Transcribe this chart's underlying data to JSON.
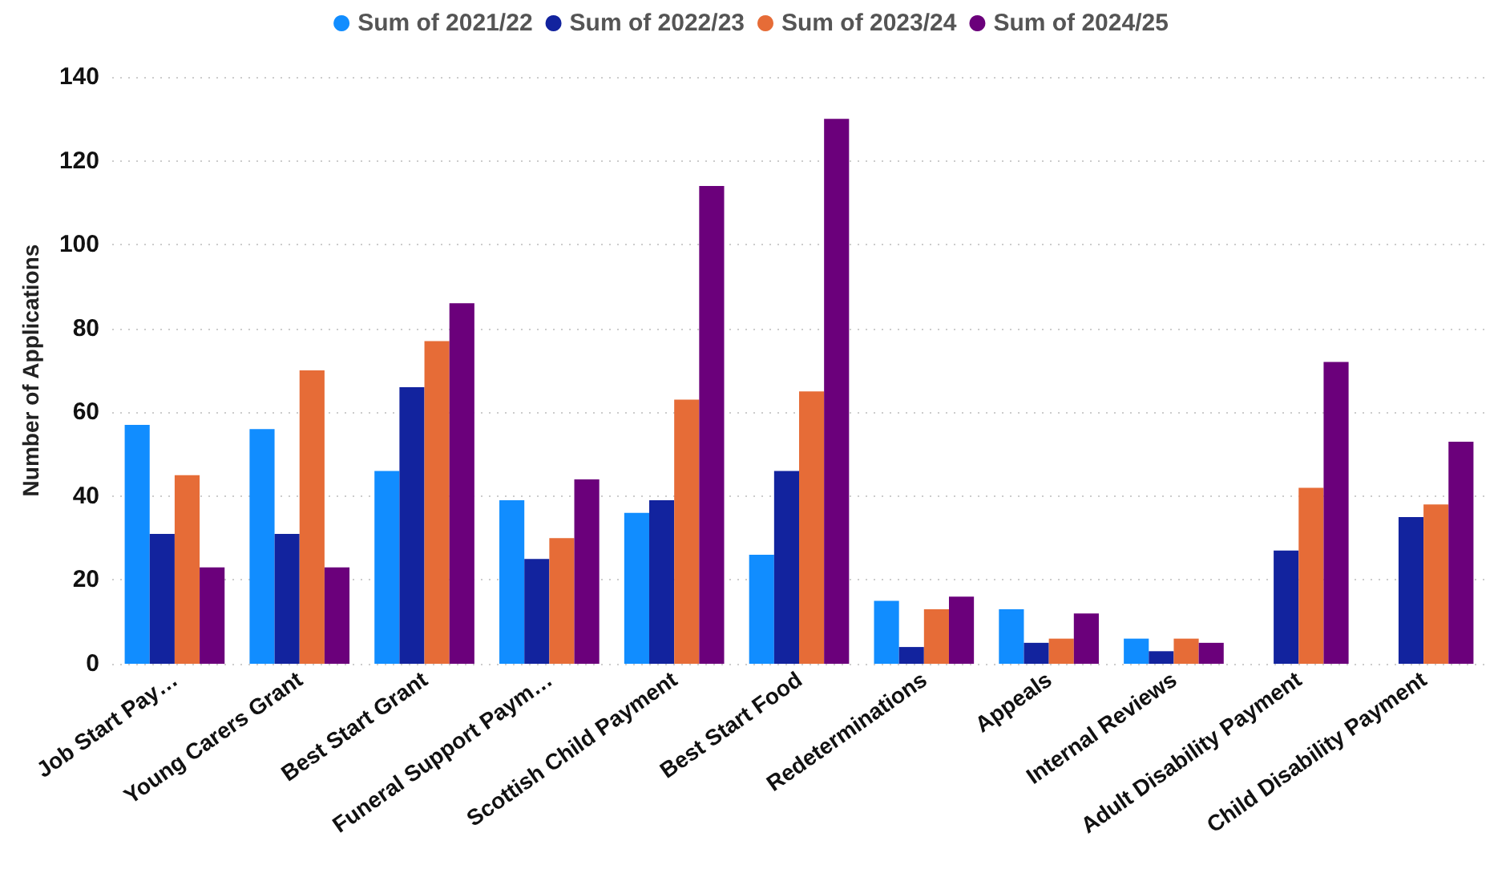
{
  "chart_data": {
    "type": "bar",
    "ylabel": "Number of Applications",
    "categories": [
      "Job Start Pay…",
      "Young Carers Grant",
      "Best Start Grant",
      "Funeral Support Paym…",
      "Scottish Child Payment",
      "Best Start Food",
      "Redeterminations",
      "Appeals",
      "Internal Reviews",
      "Adult Disability Payment",
      "Child Disability Payment"
    ],
    "series": [
      {
        "name": "Sum of 2021/22",
        "color": "#118dff",
        "values": [
          57,
          56,
          46,
          39,
          36,
          26,
          15,
          13,
          6,
          null,
          null
        ]
      },
      {
        "name": "Sum of 2022/23",
        "color": "#12239e",
        "values": [
          31,
          31,
          66,
          25,
          39,
          46,
          4,
          5,
          3,
          27,
          35
        ]
      },
      {
        "name": "Sum of 2023/24",
        "color": "#e66c37",
        "values": [
          45,
          70,
          77,
          30,
          63,
          65,
          13,
          6,
          6,
          42,
          38
        ]
      },
      {
        "name": "Sum of 2024/25",
        "color": "#6b007b",
        "values": [
          23,
          23,
          86,
          44,
          114,
          130,
          16,
          12,
          5,
          72,
          53
        ]
      }
    ],
    "ylim": [
      0,
      140
    ],
    "yticks": [
      0,
      20,
      40,
      60,
      80,
      100,
      120,
      140
    ],
    "grid": "y",
    "legend": "top"
  }
}
